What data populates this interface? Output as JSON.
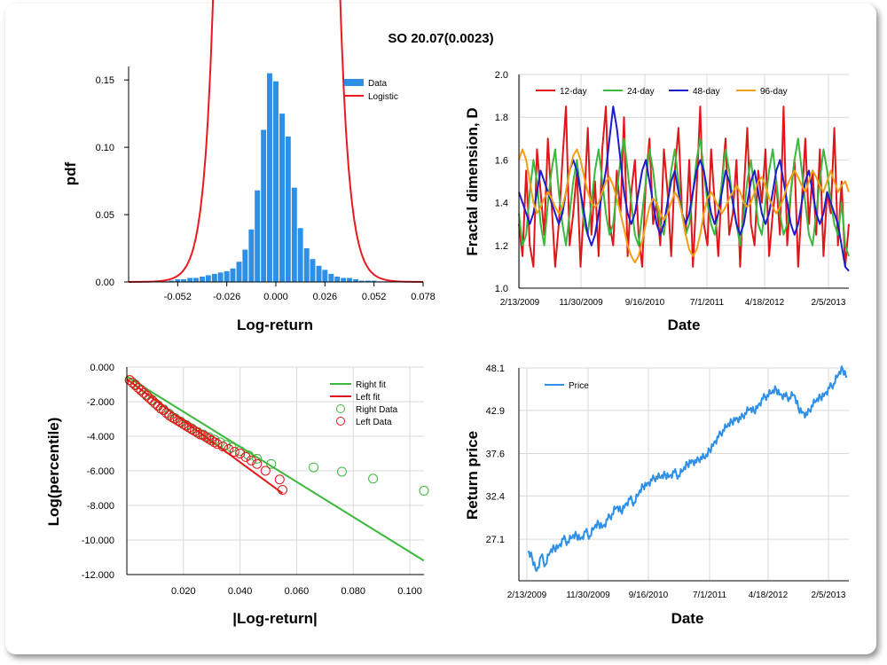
{
  "title": "SO 20.07(0.0023)",
  "chart_data": [
    {
      "id": "hist",
      "type": "bar",
      "xlabel": "Log-return",
      "ylabel": "pdf",
      "xlim": [
        -0.078,
        0.078
      ],
      "ylim": [
        0,
        0.16
      ],
      "xticks": [
        "-0.052",
        "-0.026",
        "0.000",
        "0.026",
        "0.052",
        "0.078"
      ],
      "yticks": [
        "0.00",
        "0.05",
        "0.10",
        "0.15"
      ],
      "bin_width": 0.00325,
      "bars_x": [
        -0.065,
        -0.0618,
        -0.0585,
        -0.0553,
        -0.052,
        -0.0488,
        -0.0455,
        -0.0423,
        -0.039,
        -0.0358,
        -0.0325,
        -0.0293,
        -0.026,
        -0.0228,
        -0.0195,
        -0.0163,
        -0.013,
        -0.0098,
        -0.0065,
        -0.0033,
        0.0,
        0.0033,
        0.0065,
        0.0098,
        0.013,
        0.0163,
        0.0195,
        0.0228,
        0.026,
        0.0293,
        0.0325,
        0.0358,
        0.039,
        0.0423,
        0.0455,
        0.0488,
        0.052,
        0.0553,
        0.0585,
        0.0618
      ],
      "bars_y": [
        0.0005,
        0.0005,
        0.0005,
        0.001,
        0.002,
        0.002,
        0.003,
        0.003,
        0.004,
        0.005,
        0.006,
        0.007,
        0.008,
        0.01,
        0.015,
        0.024,
        0.039,
        0.068,
        0.113,
        0.155,
        0.149,
        0.125,
        0.108,
        0.07,
        0.04,
        0.025,
        0.017,
        0.012,
        0.009,
        0.006,
        0.004,
        0.003,
        0.003,
        0.002,
        0.001,
        0.001,
        0.001,
        0.0005,
        0.0005,
        0.0005
      ],
      "legend": [
        "Data",
        "Logistic"
      ],
      "colors": {
        "data": "#2d8fe6",
        "fit": "#e8191f"
      }
    },
    {
      "id": "fractal",
      "type": "line",
      "xlabel": "Date",
      "ylabel": "Fractal dimension, D",
      "ylim": [
        1.0,
        2.0
      ],
      "yticks": [
        "1.0",
        "1.2",
        "1.4",
        "1.6",
        "1.8",
        "2.0"
      ],
      "xticks": [
        "2/13/2009",
        "11/30/2009",
        "9/16/2010",
        "7/1/2011",
        "4/18/2012",
        "2/5/2013"
      ],
      "series": [
        {
          "name": "12-day",
          "color": "#e0161a",
          "values": [
            1.3,
            1.15,
            1.55,
            1.2,
            1.1,
            1.65,
            1.45,
            1.25,
            1.7,
            1.4,
            1.1,
            1.3,
            1.6,
            1.85,
            1.2,
            1.35,
            1.55,
            1.1,
            1.4,
            1.75,
            1.25,
            1.5,
            1.15,
            1.65,
            1.85,
            1.3,
            1.2,
            1.55,
            1.35,
            1.8,
            1.15,
            1.45,
            1.6,
            1.25,
            1.1,
            1.5,
            1.7,
            1.3,
            1.4,
            1.2,
            1.65,
            1.45,
            1.15,
            1.55,
            1.75,
            1.35,
            1.25,
            1.6,
            1.1,
            1.45,
            1.85,
            1.3,
            1.2,
            1.65,
            1.4,
            1.15,
            1.5,
            1.7,
            1.25,
            1.35,
            1.6,
            1.1,
            1.45,
            1.75,
            1.3,
            1.2,
            1.55,
            1.4,
            1.65,
            1.15,
            1.35,
            1.5,
            1.25,
            1.85,
            1.2,
            1.45,
            1.6,
            1.1,
            1.4,
            1.7,
            1.3,
            1.55,
            1.25,
            1.65,
            1.15,
            1.45,
            1.35,
            1.75,
            1.2,
            1.5,
            1.1,
            1.3
          ]
        },
        {
          "name": "24-day",
          "color": "#3cb83c",
          "values": [
            1.35,
            1.2,
            1.25,
            1.45,
            1.6,
            1.5,
            1.3,
            1.2,
            1.4,
            1.55,
            1.65,
            1.45,
            1.3,
            1.2,
            1.35,
            1.5,
            1.6,
            1.45,
            1.3,
            1.25,
            1.4,
            1.55,
            1.65,
            1.5,
            1.35,
            1.25,
            1.3,
            1.45,
            1.6,
            1.7,
            1.55,
            1.4,
            1.25,
            1.2,
            1.35,
            1.5,
            1.65,
            1.55,
            1.4,
            1.3,
            1.25,
            1.4,
            1.55,
            1.65,
            1.5,
            1.35,
            1.25,
            1.3,
            1.45,
            1.6,
            1.7,
            1.55,
            1.4,
            1.3,
            1.25,
            1.35,
            1.5,
            1.65,
            1.55,
            1.4,
            1.3,
            1.2,
            1.35,
            1.5,
            1.6,
            1.45,
            1.3,
            1.25,
            1.4,
            1.55,
            1.65,
            1.5,
            1.35,
            1.25,
            1.3,
            1.45,
            1.6,
            1.7,
            1.55,
            1.4,
            1.25,
            1.2,
            1.35,
            1.5,
            1.65,
            1.55,
            1.4,
            1.3,
            1.25,
            1.4,
            1.2,
            1.15
          ]
        },
        {
          "name": "48-day",
          "color": "#1c1ccf",
          "values": [
            1.45,
            1.4,
            1.35,
            1.3,
            1.35,
            1.45,
            1.55,
            1.5,
            1.45,
            1.4,
            1.35,
            1.3,
            1.35,
            1.45,
            1.55,
            1.6,
            1.55,
            1.45,
            1.35,
            1.25,
            1.2,
            1.25,
            1.35,
            1.45,
            1.55,
            1.7,
            1.85,
            1.75,
            1.6,
            1.45,
            1.35,
            1.3,
            1.35,
            1.45,
            1.55,
            1.6,
            1.5,
            1.4,
            1.3,
            1.25,
            1.3,
            1.4,
            1.5,
            1.55,
            1.45,
            1.35,
            1.3,
            1.35,
            1.45,
            1.55,
            1.6,
            1.55,
            1.45,
            1.35,
            1.3,
            1.35,
            1.45,
            1.55,
            1.5,
            1.4,
            1.3,
            1.25,
            1.3,
            1.4,
            1.5,
            1.55,
            1.45,
            1.35,
            1.3,
            1.35,
            1.45,
            1.55,
            1.6,
            1.5,
            1.4,
            1.3,
            1.25,
            1.3,
            1.4,
            1.5,
            1.55,
            1.45,
            1.35,
            1.3,
            1.35,
            1.45,
            1.4,
            1.35,
            1.3,
            1.2,
            1.1,
            1.08
          ]
        },
        {
          "name": "96-day",
          "color": "#f0a014",
          "values": [
            1.6,
            1.65,
            1.6,
            1.5,
            1.4,
            1.35,
            1.38,
            1.42,
            1.45,
            1.42,
            1.38,
            1.35,
            1.38,
            1.45,
            1.55,
            1.62,
            1.65,
            1.6,
            1.52,
            1.45,
            1.4,
            1.38,
            1.4,
            1.45,
            1.5,
            1.52,
            1.48,
            1.42,
            1.35,
            1.28,
            1.2,
            1.15,
            1.12,
            1.15,
            1.22,
            1.3,
            1.38,
            1.42,
            1.4,
            1.35,
            1.32,
            1.35,
            1.4,
            1.45,
            1.42,
            1.35,
            1.25,
            1.18,
            1.15,
            1.18,
            1.25,
            1.35,
            1.42,
            1.45,
            1.42,
            1.38,
            1.35,
            1.38,
            1.42,
            1.45,
            1.48,
            1.45,
            1.4,
            1.38,
            1.4,
            1.45,
            1.5,
            1.52,
            1.48,
            1.42,
            1.38,
            1.35,
            1.38,
            1.42,
            1.48,
            1.52,
            1.55,
            1.52,
            1.48,
            1.45,
            1.5,
            1.55,
            1.52,
            1.48,
            1.45,
            1.5,
            1.55,
            1.5,
            1.45,
            1.48,
            1.5,
            1.45
          ]
        }
      ]
    },
    {
      "id": "tail",
      "type": "scatter",
      "xlabel": "|Log-return|",
      "ylabel": "Log(percentile)",
      "xlim": [
        0,
        0.105
      ],
      "ylim": [
        -12,
        0
      ],
      "xticks": [
        "0.020",
        "0.040",
        "0.060",
        "0.080",
        "0.100"
      ],
      "yticks": [
        "0.000",
        "-2.000",
        "-4.000",
        "-6.000",
        "-8.000",
        "-10.000",
        "-12.000"
      ],
      "legend": [
        "Right fit",
        "Left fit",
        "Right Data",
        "Left Data"
      ],
      "right_fit": {
        "x": [
          0.0,
          0.105
        ],
        "y": [
          -0.55,
          -11.2
        ],
        "color": "#3cb83c"
      },
      "left_fit": {
        "x": [
          0.0,
          0.055
        ],
        "y": [
          -0.7,
          -7.3
        ],
        "color": "#e0161a"
      },
      "right_data": {
        "color": "#3cb83c",
        "x": [
          0.001,
          0.003,
          0.005,
          0.007,
          0.009,
          0.011,
          0.013,
          0.015,
          0.017,
          0.019,
          0.021,
          0.023,
          0.025,
          0.027,
          0.029,
          0.031,
          0.033,
          0.035,
          0.037,
          0.04,
          0.043,
          0.046,
          0.051,
          0.066,
          0.076,
          0.087,
          0.105
        ],
        "y": [
          -0.75,
          -1.0,
          -1.3,
          -1.6,
          -1.9,
          -2.2,
          -2.45,
          -2.7,
          -2.95,
          -3.15,
          -3.35,
          -3.55,
          -3.75,
          -3.9,
          -4.05,
          -4.2,
          -4.35,
          -4.5,
          -4.65,
          -4.85,
          -5.1,
          -5.3,
          -5.6,
          -5.8,
          -6.05,
          -6.45,
          -7.15
        ]
      },
      "left_data": {
        "color": "#e0161a",
        "x": [
          0.001,
          0.002,
          0.003,
          0.004,
          0.005,
          0.006,
          0.007,
          0.008,
          0.009,
          0.01,
          0.011,
          0.012,
          0.013,
          0.014,
          0.015,
          0.016,
          0.017,
          0.018,
          0.019,
          0.02,
          0.021,
          0.022,
          0.023,
          0.024,
          0.025,
          0.026,
          0.027,
          0.028,
          0.029,
          0.03,
          0.031,
          0.032,
          0.034,
          0.036,
          0.038,
          0.04,
          0.042,
          0.044,
          0.046,
          0.049,
          0.054,
          0.055
        ],
        "y": [
          -0.75,
          -0.9,
          -1.05,
          -1.2,
          -1.35,
          -1.5,
          -1.65,
          -1.8,
          -1.95,
          -2.1,
          -2.25,
          -2.4,
          -2.5,
          -2.65,
          -2.8,
          -2.9,
          -3.0,
          -3.1,
          -3.2,
          -3.3,
          -3.4,
          -3.5,
          -3.6,
          -3.7,
          -3.8,
          -3.9,
          -3.95,
          -4.05,
          -4.15,
          -4.25,
          -4.35,
          -4.45,
          -4.6,
          -4.75,
          -4.9,
          -5.0,
          -5.2,
          -5.4,
          -5.6,
          -6.0,
          -6.5,
          -7.1
        ]
      }
    },
    {
      "id": "price",
      "type": "line",
      "xlabel": "Date",
      "ylabel": "Return price",
      "ylim": [
        22.0,
        48.1
      ],
      "yticks": [
        "48.1",
        "42.9",
        "37.6",
        "32.4",
        "27.1"
      ],
      "ytick_values": [
        48.1,
        42.9,
        37.6,
        32.4,
        27.1
      ],
      "xticks": [
        "2/13/2009",
        "11/30/2009",
        "9/16/2010",
        "7/1/2011",
        "4/18/2012",
        "2/5/2013"
      ],
      "series": [
        {
          "name": "Price",
          "color": "#2d8fe6",
          "values": [
            25.5,
            24.8,
            23.2,
            25.0,
            24.0,
            25.5,
            26.0,
            26.3,
            27.1,
            26.8,
            27.3,
            27.6,
            27.2,
            28.0,
            27.5,
            28.5,
            29.0,
            28.7,
            29.5,
            30.2,
            31.0,
            30.5,
            31.4,
            32.0,
            31.6,
            32.6,
            33.6,
            34.0,
            34.3,
            34.8,
            34.6,
            35.0,
            34.9,
            35.3,
            34.9,
            35.5,
            36.3,
            36.8,
            36.5,
            37.2,
            37.0,
            38.0,
            39.0,
            39.6,
            40.5,
            40.9,
            41.5,
            42.0,
            41.8,
            42.6,
            43.0,
            42.8,
            43.6,
            44.3,
            44.8,
            45.0,
            45.5,
            44.9,
            44.6,
            44.5,
            44.8,
            43.2,
            42.7,
            42.3,
            43.5,
            44.0,
            44.5,
            45.0,
            45.6,
            46.2,
            47.2,
            48.0,
            47.0
          ]
        }
      ],
      "legend": [
        "Price"
      ]
    }
  ]
}
